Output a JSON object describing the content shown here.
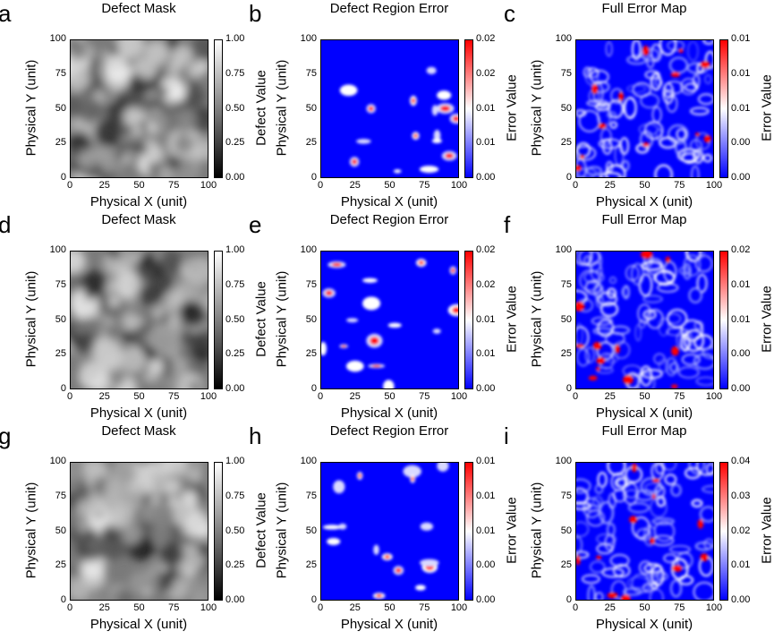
{
  "figure": {
    "panels": [
      {
        "letter": "a",
        "title": "Defect Mask",
        "kind": "mask",
        "seed": 11,
        "cbar_label": "Defect Value",
        "cbar_ticks": [
          "1.00",
          "0.75",
          "0.50",
          "0.25",
          "0.00"
        ]
      },
      {
        "letter": "b",
        "title": "Defect Region Error",
        "kind": "region",
        "seed": 23,
        "cbar_label": "Error Value",
        "cbar_ticks": [
          "0.02",
          "0.02",
          "0.01",
          "0.01",
          "0.00"
        ]
      },
      {
        "letter": "c",
        "title": "Full Error Map",
        "kind": "full",
        "seed": 37,
        "cbar_label": "Error Value",
        "cbar_ticks": [
          "0.01",
          "0.01",
          "0.01",
          "0.00",
          "0.00"
        ]
      },
      {
        "letter": "d",
        "title": "Defect Mask",
        "kind": "mask",
        "seed": 41,
        "cbar_label": "Defect Value",
        "cbar_ticks": [
          "1.00",
          "0.75",
          "0.50",
          "0.25",
          "0.00"
        ]
      },
      {
        "letter": "e",
        "title": "Defect Region Error",
        "kind": "region",
        "seed": 53,
        "cbar_label": "Error Value",
        "cbar_ticks": [
          "0.02",
          "0.02",
          "0.01",
          "0.01",
          "0.00"
        ]
      },
      {
        "letter": "f",
        "title": "Full Error Map",
        "kind": "full",
        "seed": 67,
        "cbar_label": "Error Value",
        "cbar_ticks": [
          "0.02",
          "0.01",
          "0.01",
          "0.00",
          "0.00"
        ]
      },
      {
        "letter": "g",
        "title": "Defect Mask",
        "kind": "mask",
        "seed": 71,
        "cbar_label": "Defect Value",
        "cbar_ticks": [
          "1.00",
          "0.75",
          "0.50",
          "0.25",
          "0.00"
        ]
      },
      {
        "letter": "h",
        "title": "Defect Region Error",
        "kind": "region",
        "seed": 83,
        "cbar_label": "Error Value",
        "cbar_ticks": [
          "0.01",
          "0.01",
          "0.01",
          "0.00",
          "0.00"
        ]
      },
      {
        "letter": "i",
        "title": "Full Error Map",
        "kind": "full",
        "seed": 97,
        "cbar_label": "Error Value",
        "cbar_ticks": [
          "0.04",
          "0.03",
          "0.02",
          "0.01",
          "0.00"
        ]
      }
    ]
  },
  "chart_data": {
    "type": "heatmap",
    "layout": "3x3 grid",
    "xlabel": "Physical X (unit)",
    "ylabel": "Physical Y (unit)",
    "xlim": [
      0,
      100
    ],
    "ylim": [
      0,
      100
    ],
    "x_ticks": [
      "0",
      "25",
      "50",
      "75",
      "100"
    ],
    "y_ticks": [
      "0",
      "25",
      "50",
      "75",
      "100"
    ],
    "colormaps": {
      "mask": "gray",
      "error": "bwr"
    },
    "colors": {
      "low": "#0000ff",
      "mid": "#ffffff",
      "high": "#ff0000"
    }
  }
}
